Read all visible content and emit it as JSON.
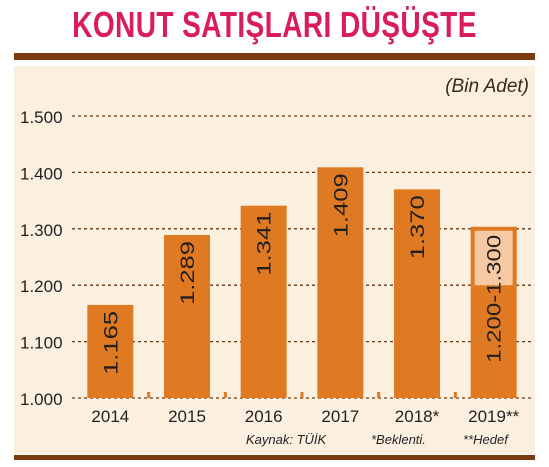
{
  "title": "KONUT SATIŞLARI DÜŞÜŞTE",
  "unit_label": "(Bin Adet)",
  "footnotes": {
    "source": "Kaynak: TÜİK",
    "expected": "*Beklenti.",
    "target": "**Hedef"
  },
  "colors": {
    "title": "#d91c5c",
    "bar": "#e07a22",
    "bar_range": "#f6c9a2",
    "rule": "#7a3b10",
    "panel": "#fbf0e0",
    "grid": "#6b3a12"
  },
  "chart_data": {
    "type": "bar",
    "categories": [
      "2014",
      "2015",
      "2016",
      "2017",
      "2018*",
      "2019**"
    ],
    "values": [
      1165,
      1289,
      1341,
      1409,
      1370,
      1300
    ],
    "value_labels": [
      "1.165",
      "1.289",
      "1.341",
      "1.409",
      "1.370",
      "1.200-1.300"
    ],
    "range_last": {
      "low": 1200,
      "high": 1300
    },
    "ylim": [
      1000,
      1500
    ],
    "yticks": [
      1000,
      1100,
      1200,
      1300,
      1400,
      1500
    ],
    "ytick_labels": [
      "1.000",
      "1.100",
      "1.200",
      "1.300",
      "1.400",
      "1.500"
    ],
    "grid": true,
    "legend": "none"
  }
}
